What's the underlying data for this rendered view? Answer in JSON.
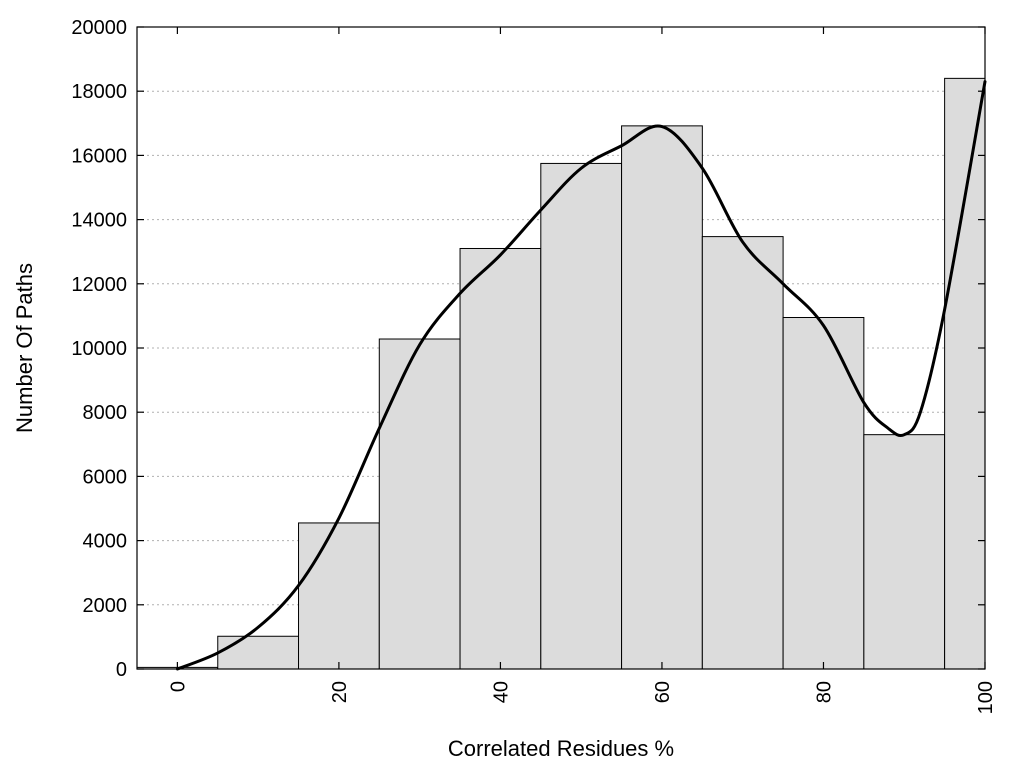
{
  "chart_data": {
    "type": "bar",
    "xlabel": "Correlated Residues %",
    "ylabel": "Number Of Paths",
    "xlim": [
      -5,
      100
    ],
    "ylim": [
      0,
      20000
    ],
    "grid": "horizontal-dotted",
    "x_ticks": [
      0,
      20,
      40,
      60,
      80,
      100
    ],
    "y_ticks": [
      0,
      2000,
      4000,
      6000,
      8000,
      10000,
      12000,
      14000,
      16000,
      18000,
      20000
    ],
    "bar_color": "#dcdcdc",
    "bars": [
      {
        "x": 0,
        "value": 50
      },
      {
        "x": 10,
        "value": 1020
      },
      {
        "x": 20,
        "value": 4550
      },
      {
        "x": 30,
        "value": 10280
      },
      {
        "x": 40,
        "value": 13100
      },
      {
        "x": 50,
        "value": 15750
      },
      {
        "x": 60,
        "value": 16920
      },
      {
        "x": 70,
        "value": 13470
      },
      {
        "x": 80,
        "value": 10950
      },
      {
        "x": 90,
        "value": 7300
      },
      {
        "x": 100,
        "value": 18400
      }
    ],
    "bin_width": 10,
    "smooth_curve": [
      {
        "x": 0,
        "y": 0
      },
      {
        "x": 5,
        "y": 500
      },
      {
        "x": 10,
        "y": 1300
      },
      {
        "x": 15,
        "y": 2600
      },
      {
        "x": 20,
        "y": 4700
      },
      {
        "x": 25,
        "y": 7500
      },
      {
        "x": 30,
        "y": 10100
      },
      {
        "x": 35,
        "y": 11700
      },
      {
        "x": 40,
        "y": 12900
      },
      {
        "x": 45,
        "y": 14300
      },
      {
        "x": 50,
        "y": 15600
      },
      {
        "x": 55,
        "y": 16300
      },
      {
        "x": 60,
        "y": 16900
      },
      {
        "x": 65,
        "y": 15600
      },
      {
        "x": 70,
        "y": 13300
      },
      {
        "x": 75,
        "y": 12000
      },
      {
        "x": 80,
        "y": 10700
      },
      {
        "x": 85,
        "y": 8300
      },
      {
        "x": 88,
        "y": 7500
      },
      {
        "x": 90,
        "y": 7300
      },
      {
        "x": 92,
        "y": 8000
      },
      {
        "x": 95,
        "y": 11200
      },
      {
        "x": 100,
        "y": 18300
      }
    ]
  }
}
